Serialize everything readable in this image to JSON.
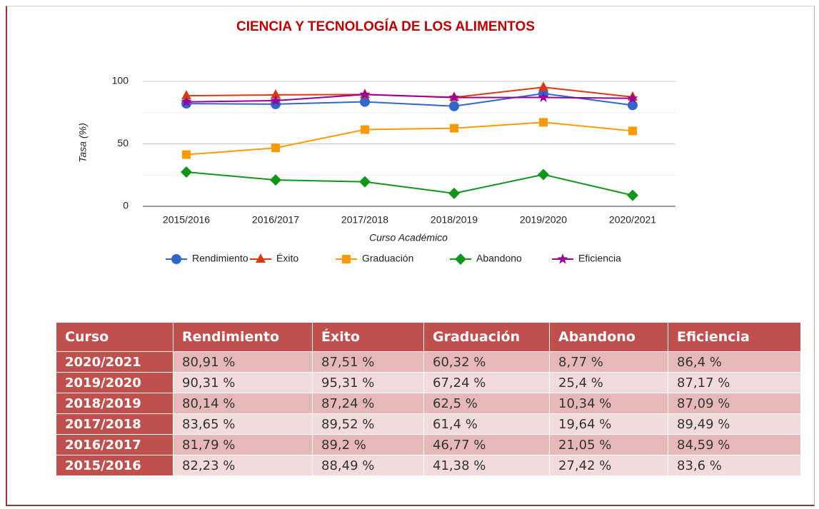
{
  "chart_data": {
    "type": "line",
    "title": "CIENCIA Y TECNOLOGÍA DE LOS ALIMENTOS",
    "x_label": "Curso Académico",
    "y_label": "Tasa (%)",
    "categories": [
      "2015/2016",
      "2016/2017",
      "2017/2018",
      "2018/2019",
      "2019/2020",
      "2020/2021"
    ],
    "series": [
      {
        "name": "Rendimiento",
        "color": "#3366cc",
        "marker": "circle",
        "values": [
          82.23,
          81.79,
          83.65,
          80.14,
          90.31,
          80.91
        ]
      },
      {
        "name": "Éxito",
        "color": "#dc3912",
        "marker": "triangle",
        "values": [
          88.49,
          89.2,
          89.52,
          87.24,
          95.31,
          87.51
        ]
      },
      {
        "name": "Graduación",
        "color": "#ff9900",
        "marker": "square",
        "values": [
          41.38,
          46.77,
          61.4,
          62.5,
          67.24,
          60.32
        ]
      },
      {
        "name": "Abandono",
        "color": "#109618",
        "marker": "diamond",
        "values": [
          27.42,
          21.05,
          19.64,
          10.34,
          25.4,
          8.77
        ]
      },
      {
        "name": "Eficiencia",
        "color": "#990099",
        "marker": "star",
        "values": [
          83.6,
          84.59,
          89.49,
          87.09,
          87.17,
          86.4
        ]
      }
    ],
    "ylim": [
      0,
      100
    ],
    "yticks": [
      0,
      50,
      100
    ],
    "minor_yticks": [
      25,
      75
    ],
    "grid": true,
    "legend": "bottom"
  },
  "table": {
    "header": [
      "Curso",
      "Rendimiento",
      "Éxito",
      "Graduación",
      "Abandono",
      "Eficiencia"
    ],
    "rows": [
      [
        "2020/2021",
        "80,91 %",
        "87,51 %",
        "60,32 %",
        "8,77 %",
        "86,4 %"
      ],
      [
        "2019/2020",
        "90,31 %",
        "95,31 %",
        "67,24 %",
        "25,4 %",
        "87,17 %"
      ],
      [
        "2018/2019",
        "80,14 %",
        "87,24 %",
        "62,5 %",
        "10,34 %",
        "87,09 %"
      ],
      [
        "2017/2018",
        "83,65 %",
        "89,52 %",
        "61,4 %",
        "19,64 %",
        "89,49 %"
      ],
      [
        "2016/2017",
        "81,79 %",
        "89,2 %",
        "46,77 %",
        "21,05 %",
        "84,59 %"
      ],
      [
        "2015/2016",
        "82,23 %",
        "88,49 %",
        "41,38 %",
        "27,42 %",
        "83,6 %"
      ]
    ]
  }
}
